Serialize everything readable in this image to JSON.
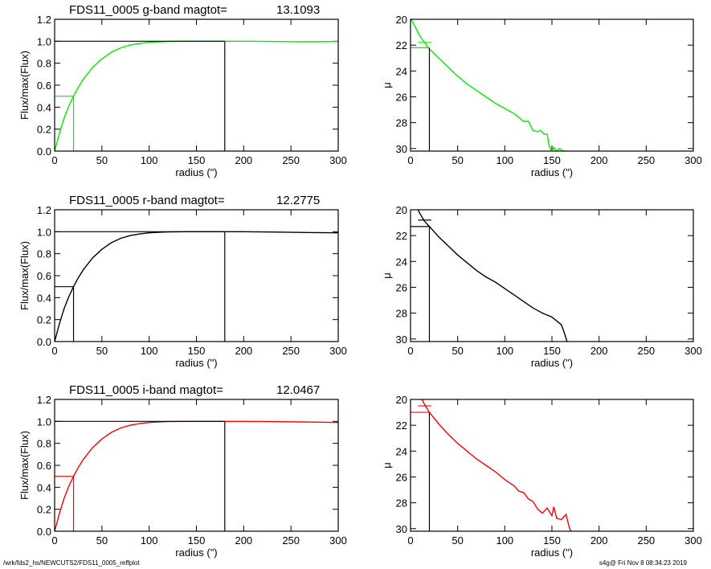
{
  "chart_data": [
    {
      "type": "line",
      "panel": "growth",
      "title_name": "FDS11_0005 g-band  magtot=",
      "title_value": "13.1093",
      "xlabel": "radius (\")",
      "ylabel": "Flux/max(Flux)",
      "xlim": [
        0,
        300
      ],
      "ylim": [
        0,
        1.2
      ],
      "xticks": [
        "0",
        "50",
        "100",
        "150",
        "200",
        "250",
        "300"
      ],
      "yticks": [
        "0.0",
        "0.2",
        "0.4",
        "0.6",
        "0.8",
        "1.0",
        "1.2"
      ],
      "color": "#00ee00",
      "x": [
        0,
        5,
        10,
        15,
        20,
        25,
        30,
        40,
        50,
        60,
        70,
        80,
        90,
        100,
        110,
        120,
        140,
        160,
        180,
        200,
        230,
        260,
        300
      ],
      "y": [
        0.0,
        0.16,
        0.3,
        0.41,
        0.5,
        0.58,
        0.65,
        0.76,
        0.84,
        0.9,
        0.94,
        0.965,
        0.98,
        0.99,
        0.995,
        0.998,
        1.0,
        1.0,
        1.0,
        1.0,
        0.998,
        0.996,
        0.997
      ],
      "reff": 20,
      "rmax": 180
    },
    {
      "type": "line",
      "panel": "profile",
      "xlabel": "radius (\")",
      "ylabel": "μ",
      "xlim": [
        0,
        300
      ],
      "ylim": [
        30.2,
        20
      ],
      "xticks": [
        "0",
        "50",
        "100",
        "150",
        "200",
        "250",
        "300"
      ],
      "yticks": [
        "20",
        "22",
        "24",
        "26",
        "28",
        "30"
      ],
      "color": "#00ee00",
      "x": [
        0,
        5,
        10,
        15,
        20,
        30,
        40,
        50,
        60,
        70,
        80,
        90,
        100,
        110,
        120,
        125,
        130,
        135,
        138,
        142,
        145,
        147,
        150,
        152,
        155,
        158,
        162,
        166
      ],
      "y": [
        19.9,
        20.6,
        21.3,
        21.8,
        22.3,
        23.0,
        23.7,
        24.4,
        25.0,
        25.5,
        26.0,
        26.5,
        26.9,
        27.3,
        27.9,
        27.9,
        28.6,
        28.7,
        28.6,
        28.9,
        28.9,
        29.8,
        30.2,
        29.9,
        30.2,
        30.0,
        30.2,
        30.2
      ],
      "reff": 20,
      "mu_eff": 22.2,
      "mu_mark": 21.8
    },
    {
      "type": "line",
      "panel": "growth",
      "title_name": "FDS11_0005 r-band  magtot=",
      "title_value": "12.2775",
      "xlabel": "radius (\")",
      "ylabel": "Flux/max(Flux)",
      "xlim": [
        0,
        300
      ],
      "ylim": [
        0,
        1.2
      ],
      "xticks": [
        "0",
        "50",
        "100",
        "150",
        "200",
        "250",
        "300"
      ],
      "yticks": [
        "0.0",
        "0.2",
        "0.4",
        "0.6",
        "0.8",
        "1.0",
        "1.2"
      ],
      "color": "#000000",
      "x": [
        0,
        5,
        10,
        15,
        20,
        25,
        30,
        40,
        50,
        60,
        70,
        80,
        90,
        100,
        110,
        120,
        140,
        160,
        180,
        200,
        230,
        260,
        300
      ],
      "y": [
        0.0,
        0.16,
        0.3,
        0.41,
        0.5,
        0.58,
        0.65,
        0.76,
        0.84,
        0.9,
        0.94,
        0.965,
        0.98,
        0.99,
        0.995,
        0.998,
        1.0,
        1.0,
        1.0,
        1.0,
        0.997,
        0.994,
        0.99
      ],
      "reff": 20,
      "rmax": 180
    },
    {
      "type": "line",
      "panel": "profile",
      "xlabel": "radius (\")",
      "ylabel": "μ",
      "xlim": [
        0,
        300
      ],
      "ylim": [
        30.2,
        20
      ],
      "xticks": [
        "0",
        "50",
        "100",
        "150",
        "200",
        "250",
        "300"
      ],
      "yticks": [
        "20",
        "22",
        "24",
        "26",
        "28",
        "30"
      ],
      "color": "#000000",
      "x": [
        8,
        10,
        15,
        20,
        30,
        40,
        50,
        60,
        70,
        80,
        90,
        100,
        110,
        120,
        130,
        140,
        150,
        155,
        160,
        163,
        166
      ],
      "y": [
        20.0,
        20.3,
        20.9,
        21.3,
        22.1,
        22.8,
        23.5,
        24.1,
        24.7,
        25.2,
        25.6,
        26.1,
        26.6,
        27.1,
        27.6,
        28.0,
        28.3,
        28.6,
        28.9,
        29.5,
        30.2
      ],
      "reff": 20,
      "mu_eff": 21.3,
      "mu_mark": 20.8
    },
    {
      "type": "line",
      "panel": "growth",
      "title_name": "FDS11_0005 i-band  magtot=",
      "title_value": "12.0467",
      "xlabel": "radius (\")",
      "ylabel": "Flux/max(Flux)",
      "xlim": [
        0,
        300
      ],
      "ylim": [
        0,
        1.2
      ],
      "xticks": [
        "0",
        "50",
        "100",
        "150",
        "200",
        "250",
        "300"
      ],
      "yticks": [
        "0.0",
        "0.2",
        "0.4",
        "0.6",
        "0.8",
        "1.0",
        "1.2"
      ],
      "color": "#ff0000",
      "x": [
        0,
        5,
        10,
        15,
        20,
        25,
        30,
        40,
        50,
        60,
        70,
        80,
        90,
        100,
        110,
        120,
        140,
        160,
        180,
        200,
        230,
        260,
        300
      ],
      "y": [
        0.0,
        0.16,
        0.3,
        0.41,
        0.5,
        0.58,
        0.65,
        0.76,
        0.84,
        0.9,
        0.94,
        0.965,
        0.98,
        0.99,
        0.995,
        0.998,
        1.0,
        1.0,
        1.0,
        1.0,
        0.998,
        0.995,
        0.99
      ],
      "reff": 20,
      "rmax": 180
    },
    {
      "type": "line",
      "panel": "profile",
      "xlabel": "radius (\")",
      "ylabel": "μ",
      "xlim": [
        0,
        300
      ],
      "ylim": [
        30.2,
        20
      ],
      "xticks": [
        "0",
        "50",
        "100",
        "150",
        "200",
        "250",
        "300"
      ],
      "yticks": [
        "20",
        "22",
        "24",
        "26",
        "28",
        "30"
      ],
      "color": "#ff0000",
      "x": [
        12,
        15,
        20,
        30,
        40,
        50,
        60,
        70,
        80,
        90,
        100,
        110,
        115,
        120,
        125,
        130,
        135,
        140,
        145,
        150,
        152,
        155,
        160,
        165,
        168,
        170
      ],
      "y": [
        20.0,
        20.4,
        21.0,
        21.9,
        22.7,
        23.4,
        24.0,
        24.6,
        25.1,
        25.6,
        26.2,
        26.7,
        27.1,
        27.2,
        27.7,
        27.9,
        28.5,
        28.8,
        28.4,
        29.0,
        28.3,
        29.2,
        29.3,
        28.9,
        29.8,
        30.2
      ],
      "reff": 20,
      "mu_eff": 21.0,
      "mu_mark": 20.5
    }
  ],
  "footer": {
    "left": "/wrk/fds2_hs/NEWCUTS2/FDS11_0005_reffplot",
    "right": "s4g@  Fri Nov  8 08:34:23 2019"
  }
}
